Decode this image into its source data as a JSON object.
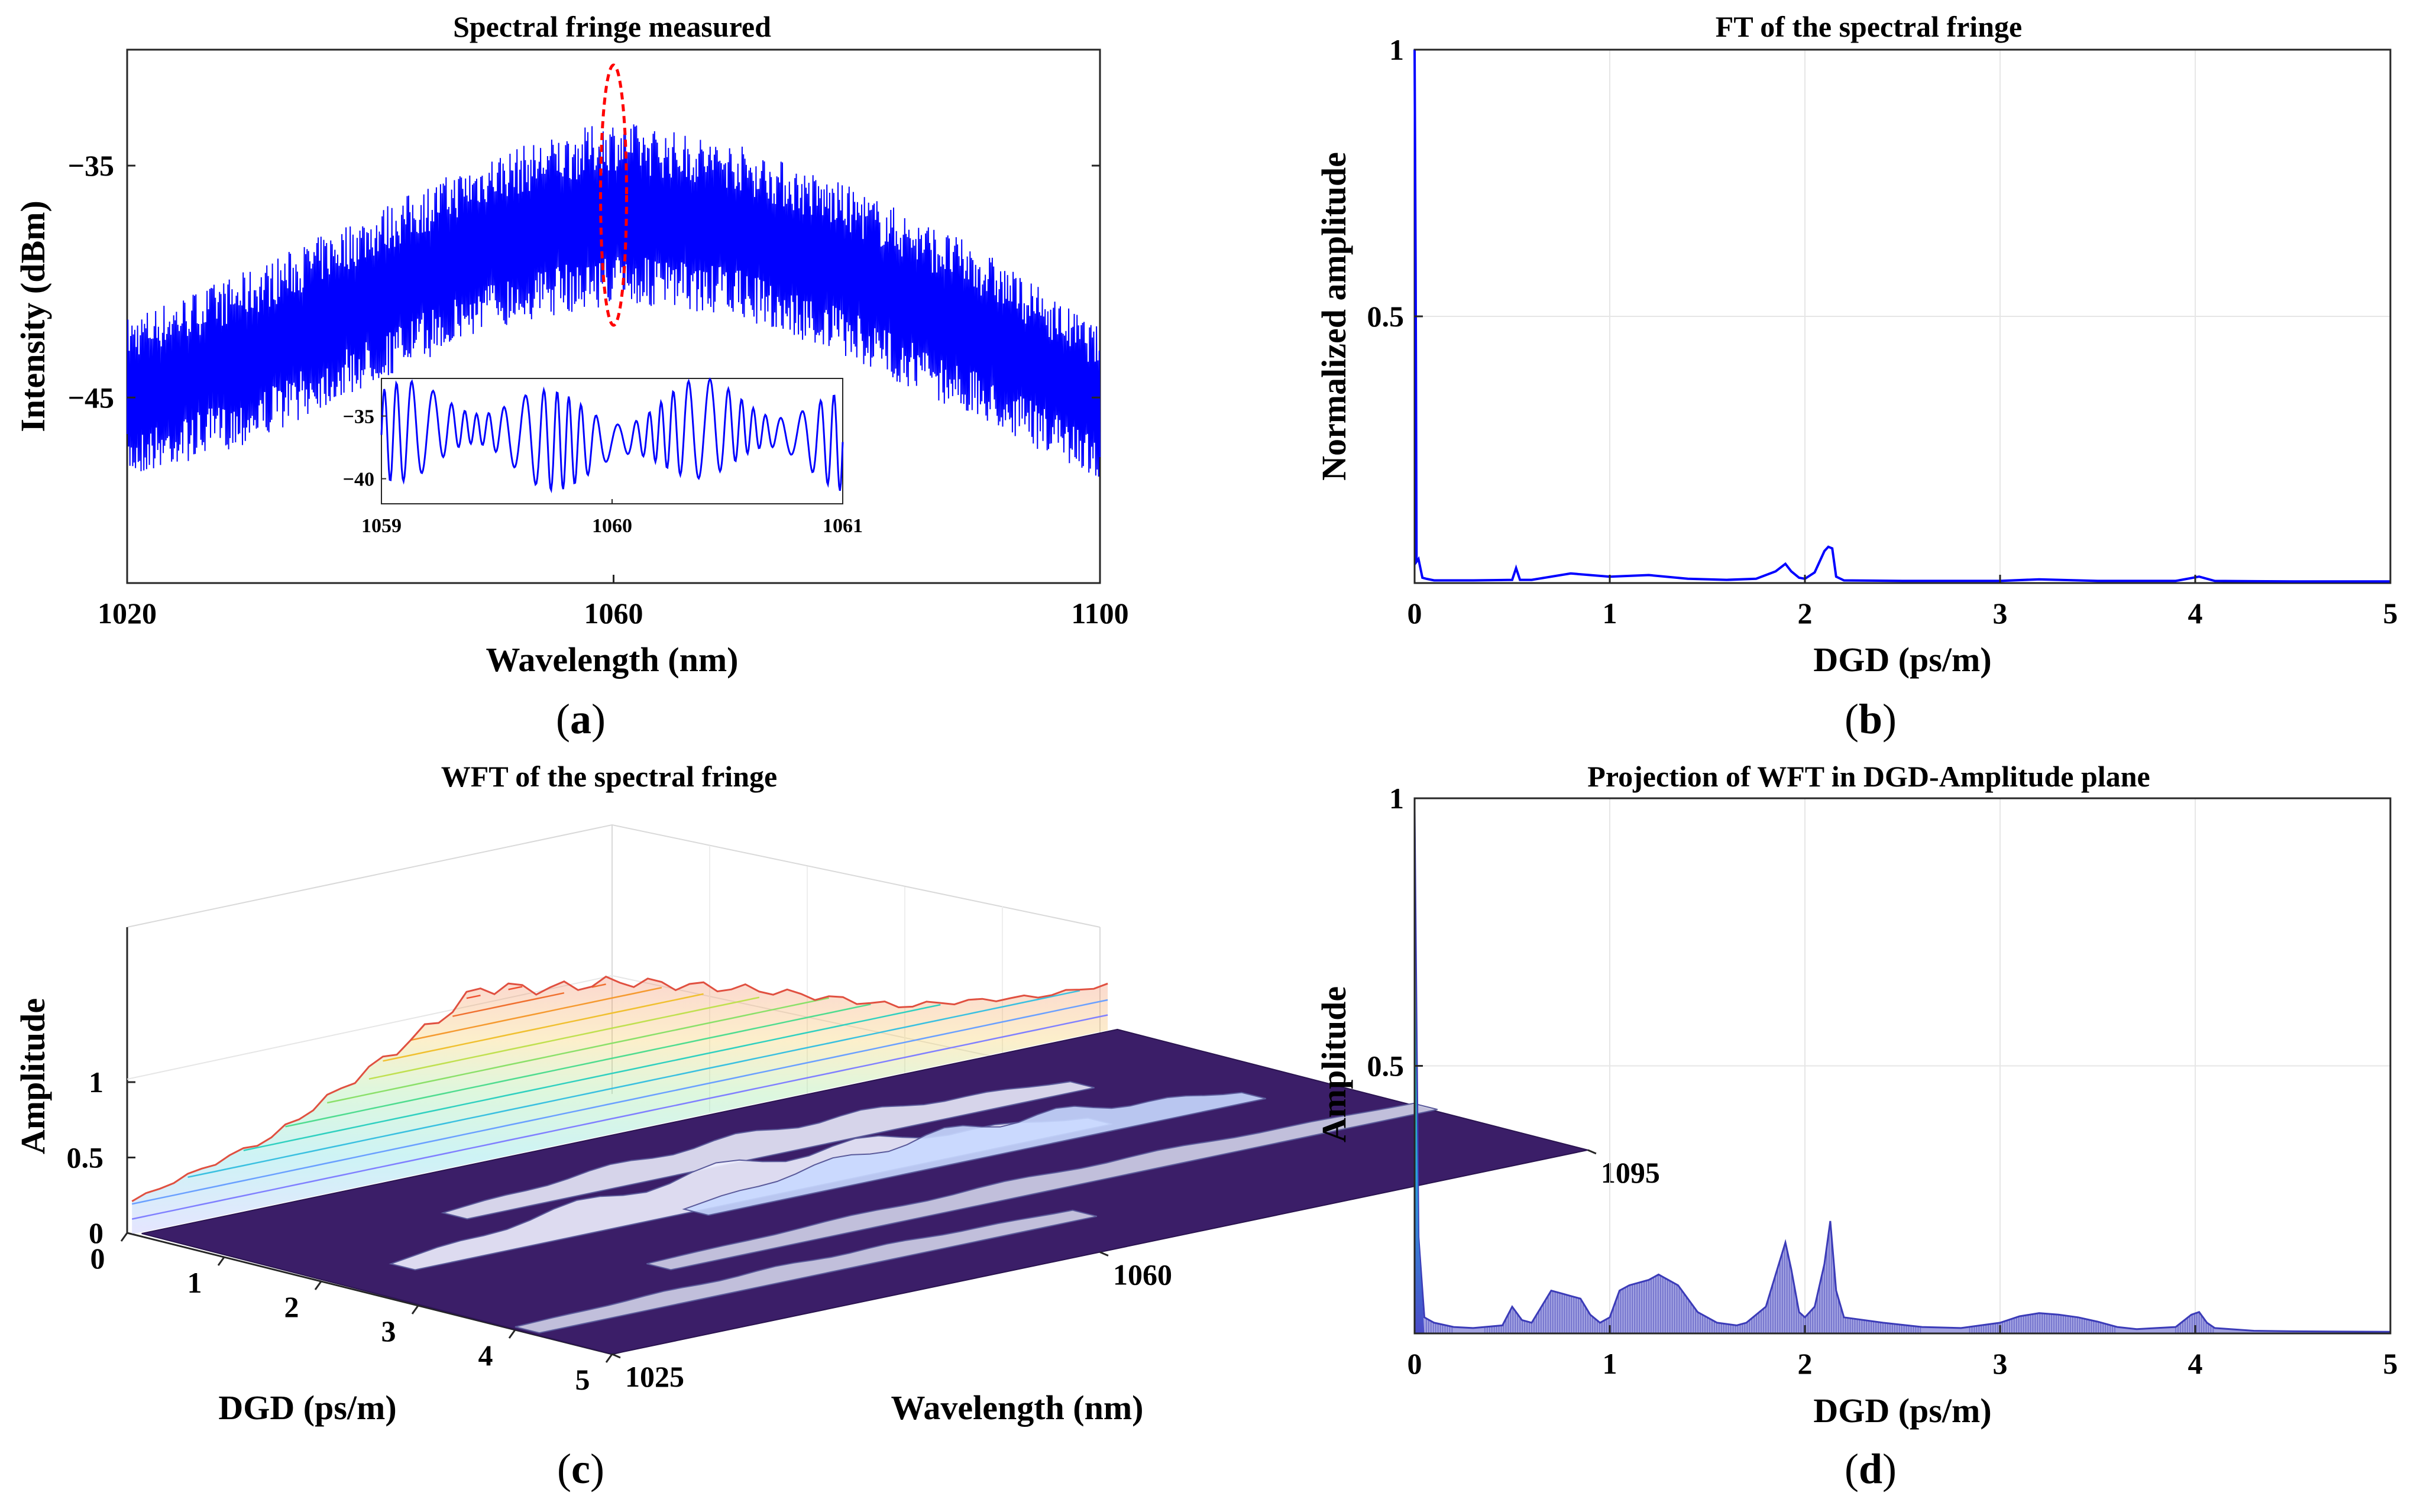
{
  "chart_data": [
    {
      "panel": "a",
      "type": "line",
      "title": "Spectral fringe measured",
      "xlabel": "Wavelength (nm)",
      "ylabel": "Intensity (dBm)",
      "xlim": [
        1020,
        1100
      ],
      "ylim": [
        -53,
        -30
      ],
      "xticks": [
        "1020",
        "1060",
        "1100"
      ],
      "yticks": [
        "−35",
        "−45"
      ],
      "xtick_values": [
        1020,
        1060,
        1100
      ],
      "ytick_values": [
        -35,
        -45
      ],
      "series_color": "#0000ff",
      "envelope": {
        "x": [
          1020,
          1030,
          1040,
          1050,
          1060,
          1070,
          1080,
          1090,
          1100
        ],
        "upper": [
          -41.5,
          -39.5,
          -37,
          -34.5,
          -33,
          -34,
          -36,
          -38.5,
          -42
        ],
        "lower": [
          -48.5,
          -47,
          -44.5,
          -42,
          -41,
          -41.5,
          -43.5,
          -46,
          -48.5
        ]
      },
      "annotation": "red dashed ellipse at 1060 nm",
      "annotation_color": "#ff0000",
      "inset": {
        "xlim": [
          1059,
          1061
        ],
        "ylim": [
          -42,
          -32
        ],
        "xticks": [
          "1059",
          "1060",
          "1061"
        ],
        "yticks": [
          "−35",
          "−40"
        ],
        "xtick_values": [
          1059,
          1060,
          1061
        ],
        "ytick_values": [
          -35,
          -40
        ]
      },
      "caption": "(a)",
      "caption_letter": "a"
    },
    {
      "panel": "b",
      "type": "line",
      "title": "FT of the spectral fringe",
      "xlabel": "DGD (ps/m)",
      "ylabel": "Normalized amplitude",
      "xlim": [
        0,
        5
      ],
      "ylim": [
        0,
        1
      ],
      "xticks": [
        "0",
        "1",
        "2",
        "3",
        "4",
        "5"
      ],
      "yticks": [
        "0.5",
        "1"
      ],
      "xtick_values": [
        0,
        1,
        2,
        3,
        4,
        5
      ],
      "ytick_values": [
        0.5,
        1
      ],
      "series_color": "#0000ff",
      "x": [
        0,
        0.005,
        0.01,
        0.02,
        0.04,
        0.06,
        0.1,
        0.3,
        0.5,
        0.52,
        0.54,
        0.6,
        0.8,
        1.0,
        1.2,
        1.4,
        1.6,
        1.75,
        1.85,
        1.9,
        1.93,
        1.97,
        2.0,
        2.05,
        2.1,
        2.12,
        2.14,
        2.16,
        2.2,
        2.5,
        3.0,
        3.2,
        3.5,
        3.9,
        4.02,
        4.1,
        4.5,
        5.0
      ],
      "y": [
        1.0,
        0.6,
        0.04,
        0.045,
        0.01,
        0.008,
        0.005,
        0.005,
        0.006,
        0.028,
        0.006,
        0.006,
        0.018,
        0.012,
        0.015,
        0.008,
        0.006,
        0.008,
        0.022,
        0.036,
        0.022,
        0.01,
        0.008,
        0.02,
        0.06,
        0.068,
        0.065,
        0.012,
        0.005,
        0.004,
        0.004,
        0.007,
        0.004,
        0.004,
        0.012,
        0.004,
        0.003,
        0.003
      ],
      "caption": "(b)",
      "caption_letter": "b"
    },
    {
      "panel": "c",
      "type": "surface",
      "title": "WFT of the spectral fringe",
      "zlabel": "Amplitude",
      "xlabel": "DGD (ps/m)",
      "ylabel": "Wavelength (nm)",
      "dgd_ticks": [
        "0",
        "1",
        "2",
        "3",
        "4",
        "5"
      ],
      "wavelength_ticks": [
        "1025",
        "1060",
        "1095"
      ],
      "amplitude_ticks": [
        "0",
        "0.5",
        "1"
      ],
      "dgd_tick_values": [
        0,
        1,
        2,
        3,
        4,
        5
      ],
      "wavelength_tick_values": [
        1025,
        1060,
        1095
      ],
      "amplitude_tick_values": [
        0,
        0.5,
        1
      ],
      "wavelength_profile": {
        "wavelength": [
          1025,
          1035,
          1045,
          1050,
          1055,
          1060,
          1070,
          1080,
          1090,
          1095
        ],
        "amplitude": [
          0.22,
          0.45,
          0.9,
          1.15,
          1.05,
          1.0,
          0.75,
          0.45,
          0.32,
          0.3
        ]
      },
      "colormap": [
        "#3b1e68",
        "#3a7fe0",
        "#27c4c4",
        "#8be06a",
        "#f0c030",
        "#f05030"
      ],
      "caption": "(c)",
      "caption_letter": "c"
    },
    {
      "panel": "d",
      "type": "area",
      "title": "Projection of WFT in DGD-Amplitude plane",
      "xlabel": "DGD (ps/m)",
      "ylabel": "Amplitude",
      "xlim": [
        0,
        5
      ],
      "ylim": [
        0,
        1
      ],
      "xticks": [
        "0",
        "1",
        "2",
        "3",
        "4",
        "5"
      ],
      "yticks": [
        "0.5",
        "1"
      ],
      "xtick_values": [
        0,
        1,
        2,
        3,
        4,
        5
      ],
      "ytick_values": [
        0.5,
        1
      ],
      "fill_color": "#5656c8",
      "x": [
        0,
        0.02,
        0.05,
        0.1,
        0.2,
        0.3,
        0.45,
        0.5,
        0.55,
        0.6,
        0.7,
        0.75,
        0.8,
        0.85,
        0.9,
        0.95,
        1.0,
        1.05,
        1.1,
        1.2,
        1.25,
        1.3,
        1.35,
        1.45,
        1.55,
        1.65,
        1.7,
        1.8,
        1.9,
        1.93,
        1.97,
        2.0,
        2.05,
        2.1,
        2.13,
        2.16,
        2.2,
        2.4,
        2.6,
        2.8,
        3.0,
        3.1,
        3.2,
        3.3,
        3.4,
        3.5,
        3.6,
        3.7,
        3.8,
        3.9,
        3.98,
        4.02,
        4.06,
        4.1,
        4.3,
        4.5,
        5.0
      ],
      "y": [
        0.98,
        0.18,
        0.03,
        0.02,
        0.012,
        0.01,
        0.015,
        0.05,
        0.025,
        0.02,
        0.08,
        0.075,
        0.07,
        0.065,
        0.035,
        0.02,
        0.03,
        0.08,
        0.09,
        0.1,
        0.11,
        0.1,
        0.09,
        0.04,
        0.02,
        0.015,
        0.02,
        0.05,
        0.17,
        0.12,
        0.04,
        0.03,
        0.05,
        0.13,
        0.21,
        0.08,
        0.03,
        0.02,
        0.012,
        0.01,
        0.02,
        0.032,
        0.038,
        0.035,
        0.03,
        0.022,
        0.012,
        0.008,
        0.01,
        0.012,
        0.035,
        0.04,
        0.02,
        0.01,
        0.005,
        0.004,
        0.003
      ],
      "caption": "(d)",
      "caption_letter": "d"
    }
  ]
}
